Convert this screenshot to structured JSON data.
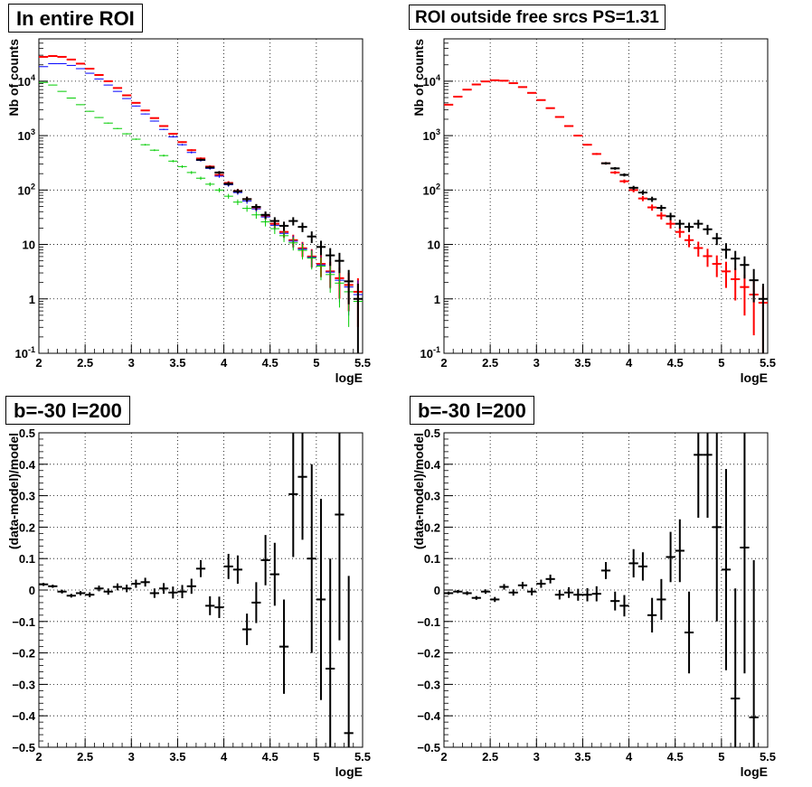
{
  "chart_data": [
    {
      "type": "scatter",
      "title": "In entire ROI",
      "xlabel": "logE",
      "ylabel": "Nb of counts",
      "xlim": [
        2,
        5.5
      ],
      "ylim": [
        0.1,
        60000
      ],
      "yscale": "log",
      "grid": true,
      "x_ticks": [
        "2",
        "2.5",
        "3",
        "3.5",
        "4",
        "4.5",
        "5",
        "5.5"
      ],
      "y_ticks": [
        "10⁻¹",
        "1",
        "10",
        "10²",
        "10³",
        "10⁴"
      ],
      "x": [
        2.05,
        2.15,
        2.25,
        2.35,
        2.45,
        2.55,
        2.65,
        2.75,
        2.85,
        2.95,
        3.05,
        3.15,
        3.25,
        3.35,
        3.45,
        3.55,
        3.65,
        3.75,
        3.85,
        3.95,
        4.05,
        4.15,
        4.25,
        4.35,
        4.45,
        4.55,
        4.65,
        4.75,
        4.85,
        4.95,
        5.05,
        5.15,
        5.25,
        5.35,
        5.45
      ],
      "series": [
        {
          "color": "#ff0000",
          "values": [
            28000,
            29000,
            28000,
            25000,
            21000,
            17000,
            13000,
            10000,
            7500,
            5500,
            4000,
            2900,
            2100,
            1500,
            1080,
            760,
            540,
            380,
            270,
            190,
            135,
            96,
            68,
            48,
            34,
            24,
            17,
            12,
            8.5,
            6,
            4.4,
            3.2,
            2.4,
            1.8,
            1.35
          ]
        },
        {
          "color": "#0000ff",
          "values": [
            18500,
            21000,
            21000,
            19500,
            17000,
            14000,
            11000,
            8500,
            6500,
            4800,
            3500,
            2500,
            1850,
            1300,
            950,
            680,
            490,
            350,
            250,
            180,
            125,
            90,
            63,
            45,
            32,
            22.5,
            16,
            11.5,
            8.2,
            5.8,
            4.2,
            3.1,
            2.2,
            1.65,
            1.2
          ]
        },
        {
          "color": "#00cc00",
          "values": [
            9500,
            8500,
            6500,
            4900,
            3700,
            2800,
            2150,
            1700,
            1350,
            1080,
            860,
            680,
            540,
            430,
            340,
            270,
            210,
            165,
            128,
            100,
            77,
            60,
            46,
            35,
            26,
            19.5,
            14.5,
            10.7,
            7.8,
            5.6,
            4,
            2.8,
            1.95,
            1.35,
            0.9
          ]
        },
        {
          "color": "#000000",
          "values": [
            null,
            null,
            null,
            null,
            null,
            null,
            null,
            null,
            null,
            null,
            null,
            null,
            null,
            null,
            null,
            null,
            null,
            360,
            260,
            210,
            130,
            95,
            68,
            49,
            35,
            27,
            22,
            27,
            21,
            14,
            9,
            6.3,
            5,
            2.1,
            1
          ]
        }
      ]
    },
    {
      "type": "scatter",
      "title": "ROI outside free srcs PS=1.31",
      "xlabel": "logE",
      "ylabel": "Nb of counts",
      "xlim": [
        2,
        5.5
      ],
      "ylim": [
        0.1,
        60000
      ],
      "yscale": "log",
      "grid": true,
      "x_ticks": [
        "2",
        "2.5",
        "3",
        "3.5",
        "4",
        "4.5",
        "5",
        "5.5"
      ],
      "y_ticks": [
        "10⁻¹",
        "1",
        "10",
        "10²",
        "10³",
        "10⁴"
      ],
      "x": [
        2.05,
        2.15,
        2.25,
        2.35,
        2.45,
        2.55,
        2.65,
        2.75,
        2.85,
        2.95,
        3.05,
        3.15,
        3.25,
        3.35,
        3.45,
        3.55,
        3.65,
        3.75,
        3.85,
        3.95,
        4.05,
        4.15,
        4.25,
        4.35,
        4.45,
        4.55,
        4.65,
        4.75,
        4.85,
        4.95,
        5.05,
        5.15,
        5.25,
        5.35,
        5.45
      ],
      "series": [
        {
          "color": "#ff0000",
          "values": [
            3700,
            5200,
            7000,
            8700,
            9900,
            10400,
            10200,
            9200,
            7800,
            6100,
            4500,
            3200,
            2200,
            1500,
            1000,
            680,
            460,
            310,
            210,
            145,
            100,
            70,
            48,
            34,
            24,
            17,
            12,
            8.6,
            6.1,
            4.4,
            3.2,
            2.3,
            1.65,
            1.2,
            0.85
          ]
        },
        {
          "color": "#000000",
          "values": [
            null,
            null,
            null,
            null,
            null,
            null,
            null,
            null,
            null,
            null,
            null,
            null,
            null,
            null,
            null,
            null,
            null,
            310,
            250,
            190,
            110,
            90,
            68,
            47,
            33,
            24,
            21,
            24,
            19,
            13,
            8,
            5.5,
            4.2,
            2.2,
            1
          ]
        }
      ]
    },
    {
      "type": "scatter",
      "title": "b=-30 l=200",
      "xlabel": "logE",
      "ylabel": "(data-model)/model",
      "xlim": [
        2,
        5.5
      ],
      "ylim": [
        -0.5,
        0.5
      ],
      "grid": true,
      "x_ticks": [
        "2",
        "2.5",
        "3",
        "3.5",
        "4",
        "4.5",
        "5",
        "5.5"
      ],
      "y_ticks": [
        "−0.5",
        "−0.4",
        "−0.3",
        "−0.2",
        "−0.1",
        "0",
        "0.1",
        "0.2",
        "0.3",
        "0.4",
        "0.5"
      ],
      "x": [
        2.05,
        2.15,
        2.25,
        2.35,
        2.45,
        2.55,
        2.65,
        2.75,
        2.85,
        2.95,
        3.05,
        3.15,
        3.25,
        3.35,
        3.45,
        3.55,
        3.65,
        3.75,
        3.85,
        3.95,
        4.05,
        4.15,
        4.25,
        4.35,
        4.45,
        4.55,
        4.65,
        4.75,
        4.85,
        4.95,
        5.05,
        5.15,
        5.25,
        5.35
      ],
      "series": [
        {
          "color": "#000000",
          "values": [
            0.018,
            0.012,
            -0.005,
            -0.018,
            -0.01,
            -0.015,
            0.005,
            -0.005,
            0.01,
            0.005,
            0.02,
            0.025,
            -0.01,
            0.005,
            -0.008,
            -0.005,
            0.012,
            0.068,
            -0.05,
            -0.055,
            0.075,
            0.065,
            -0.125,
            -0.04,
            0.095,
            0.05,
            -0.18,
            0.305,
            0.36,
            0.1,
            -0.03,
            -0.25,
            0.24,
            -0.455
          ],
          "errors": [
            0.005,
            0.005,
            0.006,
            0.006,
            0.007,
            0.008,
            0.009,
            0.01,
            0.011,
            0.012,
            0.013,
            0.014,
            0.015,
            0.017,
            0.019,
            0.021,
            0.024,
            0.027,
            0.03,
            0.034,
            0.04,
            0.045,
            0.05,
            0.065,
            0.08,
            0.1,
            0.15,
            0.2,
            0.2,
            0.3,
            0.32,
            0.35,
            0.4,
            0.5
          ]
        }
      ]
    },
    {
      "type": "scatter",
      "title": "b=-30 l=200",
      "xlabel": "logE",
      "ylabel": "(data-model)/model",
      "xlim": [
        2,
        5.5
      ],
      "ylim": [
        -0.5,
        0.5
      ],
      "grid": true,
      "x_ticks": [
        "2",
        "2.5",
        "3",
        "3.5",
        "4",
        "4.5",
        "5",
        "5.5"
      ],
      "y_ticks": [
        "−0.5",
        "−0.4",
        "−0.3",
        "−0.2",
        "−0.1",
        "0",
        "0.1",
        "0.2",
        "0.3",
        "0.4",
        "0.5"
      ],
      "x": [
        2.05,
        2.15,
        2.25,
        2.35,
        2.45,
        2.55,
        2.65,
        2.75,
        2.85,
        2.95,
        3.05,
        3.15,
        3.25,
        3.35,
        3.45,
        3.55,
        3.65,
        3.75,
        3.85,
        3.95,
        4.05,
        4.15,
        4.25,
        4.35,
        4.45,
        4.55,
        4.65,
        4.75,
        4.85,
        4.95,
        5.05,
        5.15,
        5.25,
        5.35
      ],
      "series": [
        {
          "color": "#000000",
          "values": [
            -0.01,
            -0.005,
            -0.01,
            -0.025,
            -0.005,
            -0.03,
            0.01,
            -0.008,
            0.015,
            -0.005,
            0.02,
            0.035,
            -0.015,
            -0.008,
            -0.015,
            -0.015,
            -0.012,
            0.062,
            -0.035,
            -0.05,
            0.085,
            0.075,
            -0.08,
            -0.03,
            0.105,
            0.125,
            -0.135,
            0.43,
            0.43,
            0.2,
            0.065,
            -0.345,
            0.135,
            -0.405
          ],
          "errors": [
            0.005,
            0.005,
            0.006,
            0.006,
            0.007,
            0.008,
            0.009,
            0.01,
            0.011,
            0.012,
            0.013,
            0.014,
            0.015,
            0.017,
            0.019,
            0.021,
            0.024,
            0.027,
            0.03,
            0.034,
            0.045,
            0.045,
            0.055,
            0.065,
            0.08,
            0.1,
            0.13,
            0.2,
            0.2,
            0.3,
            0.32,
            0.35,
            0.4,
            0.5
          ]
        }
      ]
    }
  ]
}
